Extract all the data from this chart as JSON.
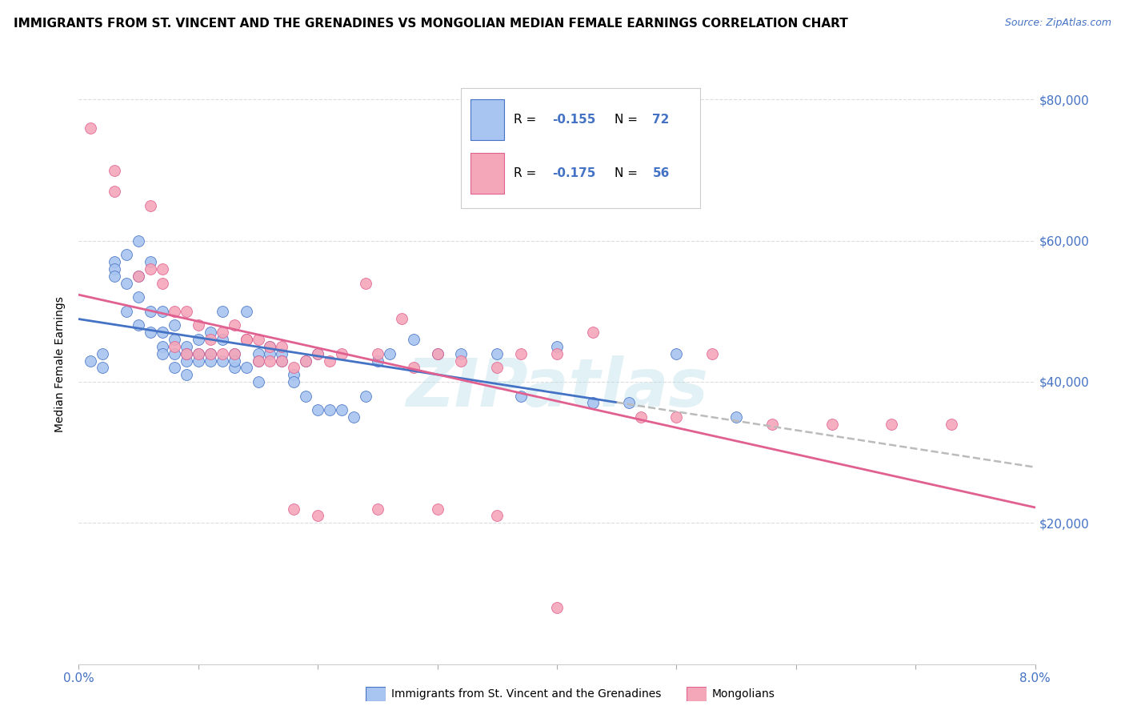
{
  "title": "IMMIGRANTS FROM ST. VINCENT AND THE GRENADINES VS MONGOLIAN MEDIAN FEMALE EARNINGS CORRELATION CHART",
  "source": "Source: ZipAtlas.com",
  "ylabel": "Median Female Earnings",
  "y_ticks": [
    0,
    20000,
    40000,
    60000,
    80000
  ],
  "y_tick_labels": [
    "",
    "$20,000",
    "$40,000",
    "$60,000",
    "$80,000"
  ],
  "x_range": [
    0.0,
    0.08
  ],
  "y_range": [
    0,
    85000
  ],
  "legend1_R": "-0.155",
  "legend1_N": "72",
  "legend2_R": "-0.175",
  "legend2_N": "56",
  "blue_fill": "#A8C4F0",
  "pink_fill": "#F4A7B9",
  "blue_edge": "#4472C4",
  "pink_edge": "#E06090",
  "blue_line": "#4472C4",
  "pink_line": "#E06090",
  "dash_line": "#BBBBBB",
  "watermark": "ZIPatlas",
  "scatter_blue_x": [
    0.001,
    0.002,
    0.002,
    0.003,
    0.003,
    0.003,
    0.004,
    0.004,
    0.004,
    0.005,
    0.005,
    0.005,
    0.005,
    0.006,
    0.006,
    0.006,
    0.007,
    0.007,
    0.007,
    0.007,
    0.008,
    0.008,
    0.008,
    0.008,
    0.009,
    0.009,
    0.009,
    0.009,
    0.01,
    0.01,
    0.01,
    0.011,
    0.011,
    0.011,
    0.012,
    0.012,
    0.012,
    0.013,
    0.013,
    0.013,
    0.014,
    0.014,
    0.014,
    0.015,
    0.015,
    0.015,
    0.016,
    0.016,
    0.017,
    0.017,
    0.018,
    0.018,
    0.019,
    0.019,
    0.02,
    0.02,
    0.021,
    0.022,
    0.023,
    0.024,
    0.025,
    0.026,
    0.028,
    0.03,
    0.032,
    0.035,
    0.037,
    0.04,
    0.043,
    0.046,
    0.05,
    0.055
  ],
  "scatter_blue_y": [
    43000,
    44000,
    42000,
    57000,
    56000,
    55000,
    58000,
    54000,
    50000,
    55000,
    60000,
    52000,
    48000,
    57000,
    50000,
    47000,
    47000,
    50000,
    45000,
    44000,
    48000,
    42000,
    44000,
    46000,
    45000,
    43000,
    41000,
    44000,
    46000,
    44000,
    43000,
    47000,
    44000,
    43000,
    50000,
    46000,
    43000,
    44000,
    42000,
    43000,
    46000,
    50000,
    42000,
    44000,
    43000,
    40000,
    45000,
    44000,
    44000,
    43000,
    41000,
    40000,
    43000,
    38000,
    44000,
    36000,
    36000,
    36000,
    35000,
    38000,
    43000,
    44000,
    46000,
    44000,
    44000,
    44000,
    38000,
    45000,
    37000,
    37000,
    44000,
    35000
  ],
  "scatter_pink_x": [
    0.001,
    0.003,
    0.003,
    0.005,
    0.006,
    0.006,
    0.007,
    0.007,
    0.008,
    0.008,
    0.009,
    0.009,
    0.01,
    0.01,
    0.011,
    0.011,
    0.012,
    0.012,
    0.013,
    0.013,
    0.014,
    0.014,
    0.015,
    0.015,
    0.016,
    0.016,
    0.017,
    0.017,
    0.018,
    0.019,
    0.02,
    0.021,
    0.022,
    0.024,
    0.025,
    0.027,
    0.028,
    0.03,
    0.032,
    0.035,
    0.037,
    0.04,
    0.043,
    0.047,
    0.05,
    0.053,
    0.058,
    0.063,
    0.068,
    0.073,
    0.018,
    0.02,
    0.025,
    0.03,
    0.035,
    0.04
  ],
  "scatter_pink_y": [
    76000,
    70000,
    67000,
    55000,
    56000,
    65000,
    56000,
    54000,
    45000,
    50000,
    50000,
    44000,
    48000,
    44000,
    46000,
    44000,
    47000,
    44000,
    48000,
    44000,
    46000,
    46000,
    46000,
    43000,
    45000,
    43000,
    45000,
    43000,
    42000,
    43000,
    44000,
    43000,
    44000,
    54000,
    44000,
    49000,
    42000,
    44000,
    43000,
    42000,
    44000,
    44000,
    47000,
    35000,
    35000,
    44000,
    34000,
    34000,
    34000,
    34000,
    22000,
    21000,
    22000,
    22000,
    21000,
    8000
  ]
}
